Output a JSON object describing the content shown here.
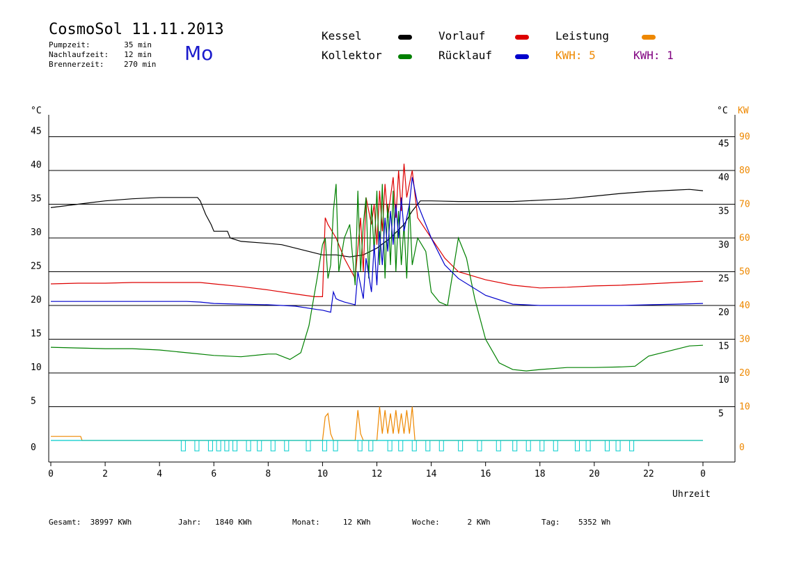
{
  "header": {
    "title": "CosmoSol 11.11.2013",
    "day": "Mo",
    "info": [
      {
        "label": "Pumpzeit:",
        "value": "35 min"
      },
      {
        "label": "Nachlaufzeit:",
        "value": "12 min"
      },
      {
        "label": "Brennerzeit:",
        "value": "270 min"
      }
    ]
  },
  "legend": {
    "kessel": {
      "label": "Kessel",
      "color": "#000000"
    },
    "vorlauf": {
      "label": "Vorlauf",
      "color": "#dd0000"
    },
    "leistung": {
      "label": "Leistung",
      "color": "#ee8800"
    },
    "kollektor": {
      "label": "Kollektor",
      "color": "#008000"
    },
    "ruecklauf": {
      "label": "Rücklauf",
      "color": "#0000cc"
    },
    "kwh1": {
      "label": "KWH: 5",
      "color": "#ee8800"
    },
    "kwh2": {
      "label": "KWH: 1",
      "color": "#800080"
    }
  },
  "footer": {
    "gesamt": {
      "label": "Gesamt:",
      "value": "38997 KWh"
    },
    "jahr": {
      "label": "Jahr:",
      "value": "1840 KWh"
    },
    "monat": {
      "label": "Monat:",
      "value": "12 KWh"
    },
    "woche": {
      "label": "Woche:",
      "value": "2 KWh"
    },
    "tag": {
      "label": "Tag:",
      "value": "5352 Wh"
    }
  },
  "chart_data": {
    "type": "line",
    "xlabel": "Uhrzeit",
    "ylabel_left": "°C",
    "ylabel_right": "°C",
    "ylabel_right2": "KW",
    "xlim": [
      0,
      24
    ],
    "ylim": [
      0,
      50
    ],
    "x_ticks": [
      "0",
      "2",
      "4",
      "6",
      "8",
      "10",
      "12",
      "14",
      "16",
      "18",
      "20",
      "22",
      "0"
    ],
    "y_ticks_left": [
      "0",
      "5",
      "10",
      "15",
      "20",
      "25",
      "30",
      "35",
      "40",
      "45"
    ],
    "y_ticks_right": [
      "5",
      "10",
      "15",
      "20",
      "25",
      "30",
      "35",
      "40",
      "45"
    ],
    "y_ticks_kw": [
      "0",
      "10",
      "20",
      "30",
      "40",
      "50",
      "60",
      "70",
      "80",
      "90"
    ],
    "grid": true,
    "series": [
      {
        "name": "Kessel",
        "color": "#000000",
        "x": [
          0,
          1,
          2,
          3,
          4,
          5.4,
          5.5,
          5.7,
          5.9,
          6,
          6.5,
          6.6,
          7,
          8,
          8.5,
          9,
          9.5,
          10,
          10.5,
          11,
          11.5,
          12,
          12.5,
          13,
          13.3,
          13.6,
          14,
          15,
          16,
          17,
          18,
          19,
          20,
          21,
          22,
          23,
          23.5,
          24
        ],
        "y": [
          34.5,
          35,
          35.5,
          35.8,
          36,
          36,
          35.5,
          33.5,
          32,
          31,
          31,
          30,
          29.5,
          29.2,
          29,
          28.5,
          28,
          27.5,
          27.5,
          27.2,
          27.5,
          28.5,
          30,
          32,
          34,
          35.5,
          35.5,
          35.4,
          35.4,
          35.4,
          35.6,
          35.8,
          36.2,
          36.6,
          36.9,
          37.1,
          37.2,
          37
        ]
      },
      {
        "name": "Vorlauf",
        "color": "#dd0000",
        "x": [
          0,
          1,
          2,
          3,
          4,
          5.5,
          6,
          7,
          8,
          9,
          9.7,
          10,
          10.1,
          10.2,
          10.5,
          10.8,
          11.2,
          11.4,
          11.5,
          11.6,
          11.8,
          11.9,
          12,
          12.1,
          12.2,
          12.3,
          12.4,
          12.5,
          12.6,
          12.7,
          12.8,
          12.9,
          13,
          13.1,
          13.2,
          13.3,
          13.5,
          14,
          14.5,
          15,
          16,
          17,
          18,
          19,
          20,
          21,
          22,
          23,
          24
        ],
        "y": [
          23.2,
          23.3,
          23.3,
          23.4,
          23.4,
          23.4,
          23.2,
          22.8,
          22.3,
          21.7,
          21.3,
          21.3,
          33,
          32,
          30,
          27,
          24,
          33,
          25,
          36,
          32,
          35,
          29,
          37,
          31,
          38,
          33,
          36,
          39,
          33,
          40,
          34,
          41,
          36,
          38,
          40,
          33,
          30,
          27,
          25,
          23.8,
          23,
          22.6,
          22.7,
          22.9,
          23,
          23.2,
          23.4,
          23.6
        ]
      },
      {
        "name": "Kollektor",
        "color": "#008000",
        "x": [
          0,
          1,
          2,
          3,
          4,
          5,
          6,
          7,
          8,
          8.3,
          8.8,
          9.2,
          9.5,
          9.8,
          10,
          10.1,
          10.2,
          10.3,
          10.4,
          10.5,
          10.6,
          10.8,
          11,
          11.2,
          11.3,
          11.4,
          11.5,
          11.6,
          11.7,
          11.8,
          11.9,
          12,
          12.1,
          12.2,
          12.3,
          12.4,
          12.5,
          12.6,
          12.7,
          12.8,
          12.9,
          13,
          13.1,
          13.2,
          13.3,
          13.5,
          13.8,
          14,
          14.3,
          14.6,
          14.8,
          15,
          15.3,
          15.6,
          16,
          16.5,
          17,
          17.5,
          18,
          19,
          20,
          21,
          21.5,
          22,
          22.5,
          23,
          23.5,
          24
        ],
        "y": [
          13.8,
          13.7,
          13.6,
          13.6,
          13.4,
          13,
          12.6,
          12.4,
          12.8,
          12.8,
          12,
          13,
          17,
          24,
          29,
          30,
          24,
          26,
          34,
          38,
          25,
          30,
          32,
          23,
          37,
          25,
          32,
          36,
          24,
          35,
          28,
          37,
          26,
          38,
          24,
          35,
          26,
          37,
          25,
          34,
          26,
          32,
          24,
          35,
          26,
          30,
          28,
          22,
          20.5,
          20,
          25,
          30,
          27,
          21,
          15,
          11.5,
          10.5,
          10.3,
          10.5,
          10.8,
          10.8,
          10.9,
          11,
          12.5,
          13,
          13.5,
          14,
          14.1
        ]
      },
      {
        "name": "Rücklauf",
        "color": "#0000cc",
        "x": [
          0,
          1,
          2,
          3,
          4,
          5,
          5.5,
          6,
          7,
          8,
          9,
          9.8,
          10,
          10.3,
          10.4,
          10.5,
          10.6,
          10.8,
          11,
          11.2,
          11.3,
          11.5,
          11.6,
          11.8,
          11.9,
          12,
          12.1,
          12.2,
          12.3,
          12.4,
          12.5,
          12.6,
          12.7,
          12.8,
          12.9,
          13,
          13.1,
          13.2,
          13.3,
          13.5,
          14,
          14.5,
          15,
          16,
          17,
          18,
          19,
          20,
          21,
          22,
          23,
          24
        ],
        "y": [
          20.6,
          20.6,
          20.6,
          20.6,
          20.6,
          20.6,
          20.5,
          20.3,
          20.2,
          20.1,
          19.9,
          19.4,
          19.3,
          19,
          22,
          21,
          20.8,
          20.5,
          20.3,
          20.1,
          25,
          21,
          27,
          22,
          29,
          23,
          31,
          26,
          33,
          28,
          34,
          29,
          35,
          30,
          36,
          31,
          33,
          35,
          39,
          35,
          30,
          26,
          24,
          21.5,
          20.2,
          20,
          20,
          20,
          20,
          20.1,
          20.2,
          20.3
        ]
      },
      {
        "name": "Leistung",
        "color": "#ee8800",
        "x": [
          0,
          1.1,
          1.15,
          10,
          10.1,
          10.2,
          10.3,
          10.4,
          11.2,
          11.3,
          11.4,
          11.5,
          12,
          12.1,
          12.2,
          12.3,
          12.4,
          12.5,
          12.6,
          12.7,
          12.8,
          12.9,
          13,
          13.1,
          13.2,
          13.3,
          13.4,
          24
        ],
        "y": [
          0.6,
          0.6,
          0,
          0,
          3.5,
          4,
          1,
          0,
          0,
          4.5,
          1,
          0,
          0,
          5,
          1,
          4.5,
          1,
          4,
          1,
          4.5,
          1,
          4,
          1,
          4.5,
          1,
          5,
          0,
          0
        ]
      },
      {
        "name": "Pumpe",
        "color": "#00cccc",
        "x": [
          0,
          24
        ],
        "y": [
          0,
          0
        ]
      }
    ]
  }
}
